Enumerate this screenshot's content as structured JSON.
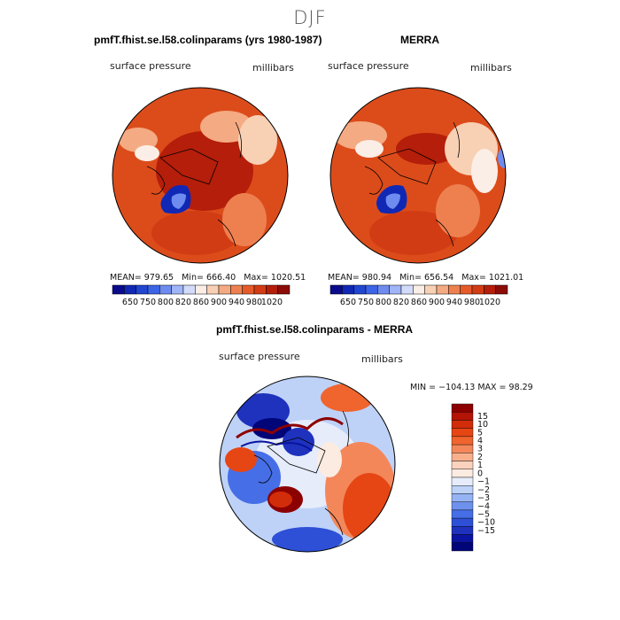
{
  "season": "DJF",
  "panels": {
    "model": {
      "title": "pmfT.fhist.se.l58.colinparams (yrs 1980-1987)",
      "variable": "surface pressure",
      "units": "millibars",
      "stats": {
        "mean_label": "MEAN=",
        "mean": "979.65",
        "min_label": "Min=",
        "min": "666.40",
        "max_label": "Max=",
        "max": "1020.51"
      },
      "colorbar_ticks": [
        "650",
        "750",
        "800",
        "820",
        "860",
        "900",
        "940",
        "980",
        "1020"
      ]
    },
    "obs": {
      "title": "MERRA",
      "variable": "surface pressure",
      "units": "millibars",
      "stats": {
        "mean_label": "MEAN=",
        "mean": "980.94",
        "min_label": "Min=",
        "min": "656.54",
        "max_label": "Max=",
        "max": "1021.01"
      },
      "colorbar_ticks": [
        "650",
        "750",
        "800",
        "820",
        "860",
        "900",
        "940",
        "980",
        "1020"
      ]
    },
    "diff": {
      "title": "pmfT.fhist.se.l58.colinparams - MERRA",
      "variable": "surface pressure",
      "units": "millibars",
      "minmax": "MIN = −104.13  MAX =  98.29",
      "colorbar_ticks": [
        "15",
        "10",
        "5",
        "4",
        "3",
        "2",
        "1",
        "0",
        "−1",
        "−2",
        "−3",
        "−4",
        "−5",
        "−10",
        "−15"
      ]
    }
  },
  "colors": {
    "abs_scale": [
      "#0a0a8c",
      "#1028b4",
      "#2046d2",
      "#3c64e6",
      "#6e8cf0",
      "#a0b4f8",
      "#d2dcfa",
      "#fbeee6",
      "#f8d0b4",
      "#f4aa82",
      "#ee8050",
      "#e65a2a",
      "#d23c14",
      "#b41e0a",
      "#8c0c08"
    ],
    "diff_scale": [
      "#8c0000",
      "#b41405",
      "#d22d0a",
      "#e64614",
      "#f0642d",
      "#f4875a",
      "#f8af8c",
      "#fad2be",
      "#fcebe1",
      "#e6ecfa",
      "#bed2f8",
      "#96b4f4",
      "#6e91ee",
      "#466ee6",
      "#2d50d7",
      "#1e32be",
      "#0a14a0",
      "#000578"
    ],
    "land_outline": "#000000"
  }
}
